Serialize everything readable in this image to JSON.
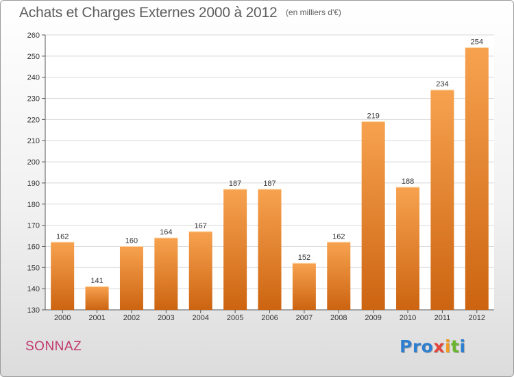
{
  "header": {
    "title": "Achats et Charges Externes 2000 à 2012",
    "subtitle": "(en milliers d'€)"
  },
  "footer": {
    "commune": "SONNAZ",
    "brand_letters": [
      "Pro",
      "x",
      "i",
      "t",
      "i"
    ]
  },
  "colors": {
    "bar_top": "#f7a24f",
    "bar_bottom": "#cc6411",
    "grid": "#d8d8d8",
    "commune": "#c0366b"
  },
  "chart_data": {
    "type": "bar",
    "title": "Achats et Charges Externes 2000 à 2012",
    "subtitle": "(en milliers d'€)",
    "categories": [
      "2000",
      "2001",
      "2002",
      "2003",
      "2004",
      "2005",
      "2006",
      "2007",
      "2008",
      "2009",
      "2010",
      "2011",
      "2012"
    ],
    "values": [
      162,
      141,
      160,
      164,
      167,
      187,
      187,
      152,
      162,
      219,
      188,
      234,
      254
    ],
    "ylim": [
      130,
      260
    ],
    "yticks": [
      130,
      140,
      150,
      160,
      170,
      180,
      190,
      200,
      210,
      220,
      230,
      240,
      250,
      260
    ],
    "grid": true,
    "legend": "none"
  }
}
